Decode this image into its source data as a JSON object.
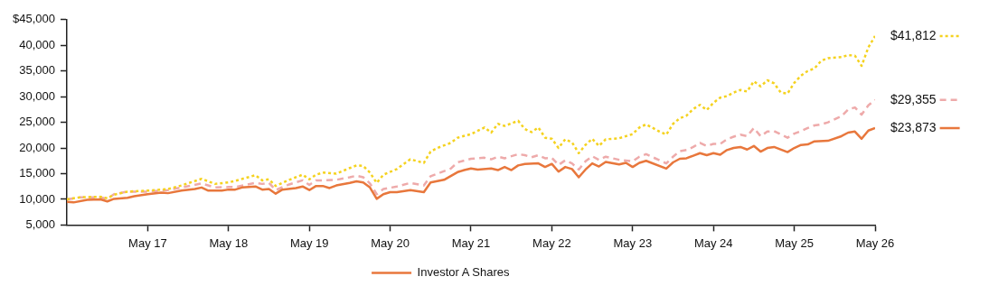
{
  "chart_data": {
    "type": "line",
    "xlim": [
      "2016-05",
      "2026-05"
    ],
    "xticks": [
      {
        "value": "2017-05",
        "label": "May 17"
      },
      {
        "value": "2018-05",
        "label": "May 18"
      },
      {
        "value": "2019-05",
        "label": "May 19"
      },
      {
        "value": "2020-05",
        "label": "May 20"
      },
      {
        "value": "2021-05",
        "label": "May 21"
      },
      {
        "value": "2022-05",
        "label": "May 22"
      },
      {
        "value": "2023-05",
        "label": "May 23"
      },
      {
        "value": "2024-05",
        "label": "May 24"
      },
      {
        "value": "2025-05",
        "label": "May 25"
      },
      {
        "value": "2026-05",
        "label": "May 26"
      }
    ],
    "ylim": [
      5000,
      45000
    ],
    "yticks": [
      {
        "value": 5000,
        "label": "5,000"
      },
      {
        "value": 10000,
        "label": "10,000"
      },
      {
        "value": 15000,
        "label": "15,000"
      },
      {
        "value": 20000,
        "label": "20,000"
      },
      {
        "value": 25000,
        "label": "25,000"
      },
      {
        "value": 30000,
        "label": "30,000"
      },
      {
        "value": 35000,
        "label": "35,000"
      },
      {
        "value": 40000,
        "label": "40,000"
      },
      {
        "value": 45000,
        "label": "$45,000"
      }
    ],
    "grid": false,
    "legend": "bottom",
    "marker": "none",
    "series": [
      {
        "name": "Investor A Shares",
        "color": "#e8773c",
        "line_style": "solid",
        "x": [
          "2016-05",
          "2016-06",
          "2016-08",
          "2016-10",
          "2016-11",
          "2016-12",
          "2017-02",
          "2017-03",
          "2017-05",
          "2017-07",
          "2017-08",
          "2017-10",
          "2017-12",
          "2018-01",
          "2018-02",
          "2018-04",
          "2018-05",
          "2018-06",
          "2018-07",
          "2018-09",
          "2018-10",
          "2018-11",
          "2018-12",
          "2019-01",
          "2019-03",
          "2019-04",
          "2019-05",
          "2019-06",
          "2019-07",
          "2019-08",
          "2019-09",
          "2019-11",
          "2019-12",
          "2020-01",
          "2020-02",
          "2020-03",
          "2020-04",
          "2020-05",
          "2020-06",
          "2020-08",
          "2020-10",
          "2020-11",
          "2021-01",
          "2021-03",
          "2021-04",
          "2021-05",
          "2021-06",
          "2021-08",
          "2021-09",
          "2021-10",
          "2021-11",
          "2021-12",
          "2022-01",
          "2022-03",
          "2022-04",
          "2022-05",
          "2022-06",
          "2022-07",
          "2022-08",
          "2022-09",
          "2022-10",
          "2022-11",
          "2022-12",
          "2023-01",
          "2023-03",
          "2023-04",
          "2023-05",
          "2023-06",
          "2023-07",
          "2023-10",
          "2023-11",
          "2023-12",
          "2024-01",
          "2024-02",
          "2024-03",
          "2024-04",
          "2024-05",
          "2024-06",
          "2024-07",
          "2024-08",
          "2024-09",
          "2024-10",
          "2024-11",
          "2024-12",
          "2025-01",
          "2025-02",
          "2025-04",
          "2025-05",
          "2025-06",
          "2025-07",
          "2025-08",
          "2025-10",
          "2025-12",
          "2026-01",
          "2026-02",
          "2026-03",
          "2026-04",
          "2026-05"
        ],
        "values": [
          9500,
          9400,
          9900,
          10000,
          9600,
          10100,
          10300,
          10600,
          11000,
          11300,
          11200,
          11700,
          12000,
          12300,
          11700,
          11700,
          11900,
          11900,
          12300,
          12500,
          11900,
          12000,
          11100,
          11900,
          12200,
          12500,
          11800,
          12600,
          12600,
          12200,
          12700,
          13200,
          13500,
          13300,
          12300,
          10100,
          11000,
          11400,
          11400,
          11800,
          11400,
          13300,
          13800,
          15300,
          15700,
          16000,
          15800,
          16000,
          15700,
          16300,
          15700,
          16600,
          16900,
          17000,
          16300,
          16900,
          15400,
          16300,
          15900,
          14300,
          15800,
          17000,
          16400,
          17300,
          16800,
          17100,
          16300,
          17100,
          17500,
          16000,
          17200,
          17900,
          18000,
          18500,
          19000,
          18600,
          19000,
          18700,
          19600,
          20000,
          20200,
          19700,
          20400,
          19300,
          20000,
          20200,
          19200,
          20000,
          20600,
          20700,
          21300,
          21400,
          22300,
          23000,
          23200,
          21800,
          23400,
          23873
        ]
      },
      {
        "color": "#f5d21f",
        "line_style": "dotted",
        "x": [
          "2016-05",
          "2016-07",
          "2016-10",
          "2016-11",
          "2016-12",
          "2017-02",
          "2017-05",
          "2017-08",
          "2017-10",
          "2018-01",
          "2018-03",
          "2018-05",
          "2018-06",
          "2018-09",
          "2018-10",
          "2018-11",
          "2018-12",
          "2019-02",
          "2019-04",
          "2019-05",
          "2019-06",
          "2019-07",
          "2019-09",
          "2019-11",
          "2019-12",
          "2020-01",
          "2020-02",
          "2020-03",
          "2020-04",
          "2020-06",
          "2020-08",
          "2020-10",
          "2020-11",
          "2020-12",
          "2021-02",
          "2021-03",
          "2021-05",
          "2021-07",
          "2021-08",
          "2021-09",
          "2021-10",
          "2021-12",
          "2022-01",
          "2022-02",
          "2022-03",
          "2022-04",
          "2022-05",
          "2022-06",
          "2022-07",
          "2022-08",
          "2022-09",
          "2022-10",
          "2022-11",
          "2022-12",
          "2023-01",
          "2023-03",
          "2023-05",
          "2023-06",
          "2023-07",
          "2023-09",
          "2023-10",
          "2023-11",
          "2023-12",
          "2024-01",
          "2024-02",
          "2024-03",
          "2024-04",
          "2024-05",
          "2024-06",
          "2024-07",
          "2024-08",
          "2024-09",
          "2024-10",
          "2024-11",
          "2024-12",
          "2025-01",
          "2025-02",
          "2025-03",
          "2025-04",
          "2025-05",
          "2025-06",
          "2025-07",
          "2025-08",
          "2025-09",
          "2025-10",
          "2025-12",
          "2026-01",
          "2026-02",
          "2026-03",
          "2026-04",
          "2026-05"
        ],
        "values": [
          10000,
          10400,
          10500,
          10200,
          10900,
          11500,
          11700,
          12000,
          12700,
          14000,
          13000,
          13300,
          13600,
          14700,
          13700,
          13900,
          12600,
          13800,
          14800,
          13900,
          14800,
          15200,
          15000,
          16100,
          16600,
          16500,
          15200,
          13200,
          14800,
          15900,
          17800,
          17100,
          19300,
          20000,
          21000,
          22000,
          22700,
          24000,
          23000,
          24700,
          24300,
          25300,
          23700,
          23100,
          24000,
          22000,
          21800,
          20000,
          21700,
          21100,
          19000,
          20600,
          21800,
          20400,
          21700,
          21900,
          22700,
          24000,
          24600,
          23200,
          22600,
          24700,
          25800,
          26300,
          27600,
          28400,
          27400,
          28800,
          29800,
          30100,
          30800,
          31300,
          31000,
          33000,
          32000,
          33200,
          32600,
          30800,
          30600,
          32700,
          34100,
          35000,
          35500,
          37000,
          37500,
          37700,
          38100,
          38000,
          36000,
          39600,
          41812
        ]
      },
      {
        "color": "#eeaaaa",
        "line_style": "dashed",
        "x": [
          "2016-05",
          "2016-07",
          "2016-10",
          "2016-11",
          "2016-12",
          "2017-02",
          "2017-05",
          "2017-08",
          "2017-10",
          "2018-01",
          "2018-03",
          "2018-05",
          "2018-06",
          "2018-09",
          "2018-10",
          "2018-11",
          "2018-12",
          "2019-02",
          "2019-04",
          "2019-05",
          "2019-06",
          "2019-07",
          "2019-09",
          "2019-11",
          "2019-12",
          "2020-01",
          "2020-02",
          "2020-03",
          "2020-04",
          "2020-06",
          "2020-08",
          "2020-10",
          "2020-11",
          "2020-12",
          "2021-02",
          "2021-03",
          "2021-05",
          "2021-07",
          "2021-08",
          "2021-09",
          "2021-10",
          "2021-12",
          "2022-01",
          "2022-02",
          "2022-03",
          "2022-04",
          "2022-05",
          "2022-06",
          "2022-07",
          "2022-08",
          "2022-09",
          "2022-10",
          "2022-11",
          "2022-12",
          "2023-01",
          "2023-03",
          "2023-05",
          "2023-06",
          "2023-07",
          "2023-10",
          "2023-11",
          "2023-12",
          "2024-01",
          "2024-02",
          "2024-03",
          "2024-04",
          "2024-05",
          "2024-06",
          "2024-07",
          "2024-08",
          "2024-09",
          "2024-10",
          "2024-11",
          "2024-12",
          "2025-01",
          "2025-02",
          "2025-04",
          "2025-05",
          "2025-06",
          "2025-07",
          "2025-08",
          "2025-09",
          "2025-10",
          "2025-12",
          "2026-01",
          "2026-02",
          "2026-03",
          "2026-04",
          "2026-05"
        ],
        "values": [
          10000,
          10400,
          10400,
          10100,
          11000,
          11500,
          11500,
          11800,
          12300,
          13100,
          12300,
          12400,
          12400,
          13200,
          13000,
          13200,
          11800,
          12900,
          13700,
          12800,
          13700,
          13700,
          13800,
          14300,
          14600,
          14300,
          13100,
          11000,
          12000,
          12500,
          13200,
          12700,
          14500,
          15000,
          16000,
          17200,
          17900,
          18100,
          17800,
          18300,
          18000,
          18800,
          18600,
          18200,
          18600,
          18000,
          18100,
          16700,
          17600,
          17000,
          15800,
          17400,
          18400,
          17700,
          18300,
          17700,
          17400,
          18300,
          18800,
          17000,
          18300,
          19400,
          19600,
          20200,
          21000,
          20400,
          20800,
          20800,
          21700,
          22200,
          22600,
          22300,
          23900,
          22300,
          23200,
          23300,
          22000,
          22800,
          23300,
          23900,
          24400,
          24600,
          25000,
          26200,
          27500,
          27900,
          26500,
          28300,
          29355
        ]
      }
    ],
    "annotations": [
      {
        "text": "$23,873",
        "x": "2026-05",
        "y": 23873
      },
      {
        "text": "$41,812",
        "x": "2026-05",
        "y": 41812
      },
      {
        "text": "$29,355",
        "x": "2026-05",
        "y": 29355
      }
    ]
  }
}
